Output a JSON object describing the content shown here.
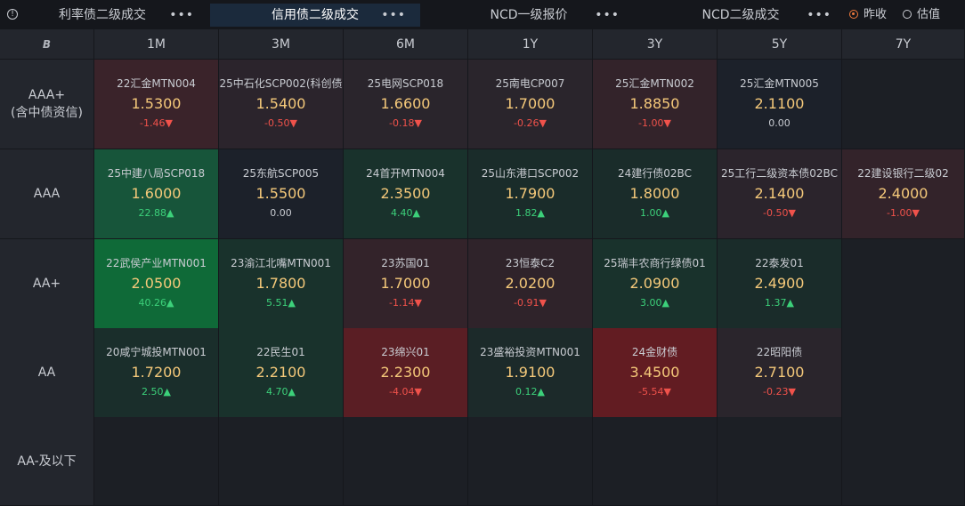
{
  "tabs": [
    {
      "label": "利率债二级成交",
      "more": "•••",
      "active": false
    },
    {
      "label": "信用债二级成交",
      "more": "•••",
      "active": true
    },
    {
      "label": "NCD一级报价",
      "more": "•••",
      "active": false
    },
    {
      "label": "NCD二级成交",
      "more": "•••",
      "active": false
    }
  ],
  "info_icon": "info-icon",
  "radio": {
    "options": [
      {
        "label": "昨收",
        "selected": true
      },
      {
        "label": "估值",
        "selected": false
      }
    ],
    "accent": "#f07a3c"
  },
  "table": {
    "corner": "B",
    "columns": [
      "1M",
      "3M",
      "6M",
      "1Y",
      "3Y",
      "5Y",
      "7Y"
    ],
    "rows": [
      {
        "label": "AAA+\n(含中债资信)",
        "cells": [
          {
            "name": "22汇金MTN004",
            "price": "1.5300",
            "change": "-1.46▼",
            "dir": "down",
            "bg": "#3a232a"
          },
          {
            "name": "25中石化SCP002(科创债",
            "price": "1.5400",
            "change": "-0.50▼",
            "dir": "down",
            "bg": "#2b242c"
          },
          {
            "name": "25电网SCP018",
            "price": "1.6600",
            "change": "-0.18▼",
            "dir": "down",
            "bg": "#2a252c"
          },
          {
            "name": "25南电CP007",
            "price": "1.7000",
            "change": "-0.26▼",
            "dir": "down",
            "bg": "#2a252c"
          },
          {
            "name": "25汇金MTN002",
            "price": "1.8850",
            "change": "-1.00▼",
            "dir": "down",
            "bg": "#33232a"
          },
          {
            "name": "25汇金MTN005",
            "price": "2.1100",
            "change": "0.00",
            "dir": "flat",
            "bg": "#1c212a"
          },
          null
        ]
      },
      {
        "label": "AAA",
        "cells": [
          {
            "name": "25中建八局SCP018",
            "price": "1.6000",
            "change": "22.88▲",
            "dir": "up",
            "bg": "#17553a"
          },
          {
            "name": "25东航SCP005",
            "price": "1.5500",
            "change": "0.00",
            "dir": "flat",
            "bg": "#1c212a"
          },
          {
            "name": "24首开MTN004",
            "price": "2.3500",
            "change": "4.40▲",
            "dir": "up",
            "bg": "#19322c"
          },
          {
            "name": "25山东港口SCP002",
            "price": "1.7900",
            "change": "1.82▲",
            "dir": "up",
            "bg": "#1a2c2a"
          },
          {
            "name": "24建行债02BC",
            "price": "1.8000",
            "change": "1.00▲",
            "dir": "up",
            "bg": "#1a2c2a"
          },
          {
            "name": "25工行二级资本债02BC",
            "price": "2.1400",
            "change": "-0.50▼",
            "dir": "down",
            "bg": "#2b242c"
          },
          {
            "name": "22建设银行二级02",
            "price": "2.4000",
            "change": "-1.00▼",
            "dir": "down",
            "bg": "#33232a"
          }
        ]
      },
      {
        "label": "AA+",
        "cells": [
          {
            "name": "22武侯产业MTN001",
            "price": "2.0500",
            "change": "40.26▲",
            "dir": "up",
            "bg": "#0f6a38"
          },
          {
            "name": "23渝江北嘴MTN001",
            "price": "1.7800",
            "change": "5.51▲",
            "dir": "up",
            "bg": "#19322c"
          },
          {
            "name": "23苏国01",
            "price": "1.7000",
            "change": "-1.14▼",
            "dir": "down",
            "bg": "#33232a"
          },
          {
            "name": "23恒泰C2",
            "price": "2.0200",
            "change": "-0.91▼",
            "dir": "down",
            "bg": "#2f232a"
          },
          {
            "name": "25瑞丰农商行绿债01",
            "price": "2.0900",
            "change": "3.00▲",
            "dir": "up",
            "bg": "#19322c"
          },
          {
            "name": "22泰发01",
            "price": "2.4900",
            "change": "1.37▲",
            "dir": "up",
            "bg": "#1a2c2a"
          },
          null
        ]
      },
      {
        "label": "AA",
        "cells": [
          {
            "name": "20咸宁城投MTN001",
            "price": "1.7200",
            "change": "2.50▲",
            "dir": "up",
            "bg": "#1a2e2b"
          },
          {
            "name": "22民生01",
            "price": "2.2100",
            "change": "4.70▲",
            "dir": "up",
            "bg": "#19322c"
          },
          {
            "name": "23绵兴01",
            "price": "2.2300",
            "change": "-4.04▼",
            "dir": "down",
            "bg": "#5a1e24"
          },
          {
            "name": "23盛裕投资MTN001",
            "price": "1.9100",
            "change": "0.12▲",
            "dir": "up",
            "bg": "#1c2a2a"
          },
          {
            "name": "24金财债",
            "price": "3.4500",
            "change": "-5.54▼",
            "dir": "down",
            "bg": "#621c22"
          },
          {
            "name": "22昭阳债",
            "price": "2.7100",
            "change": "-0.23▼",
            "dir": "down",
            "bg": "#2a252c"
          },
          null
        ]
      },
      {
        "label": "AA-及以下",
        "cells": [
          null,
          null,
          null,
          null,
          null,
          null,
          null
        ]
      }
    ]
  }
}
